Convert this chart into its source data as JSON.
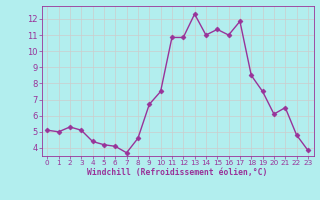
{
  "x": [
    0,
    1,
    2,
    3,
    4,
    5,
    6,
    7,
    8,
    9,
    10,
    11,
    12,
    13,
    14,
    15,
    16,
    17,
    18,
    19,
    20,
    21,
    22,
    23
  ],
  "y": [
    5.1,
    5.0,
    5.3,
    5.1,
    4.4,
    4.2,
    4.1,
    3.7,
    4.6,
    6.7,
    7.5,
    10.85,
    10.85,
    12.3,
    11.0,
    11.35,
    11.0,
    11.85,
    8.5,
    7.5,
    6.1,
    6.5,
    4.8,
    3.85
  ],
  "line_color": "#993399",
  "marker": "D",
  "marker_size": 2.5,
  "bg_color": "#b2eeee",
  "grid_color": "#cccccc",
  "xlabel": "Windchill (Refroidissement éolien,°C)",
  "xlabel_color": "#993399",
  "tick_color": "#993399",
  "ylim": [
    3.5,
    12.8
  ],
  "xlim": [
    -0.5,
    23.5
  ],
  "yticks": [
    4,
    5,
    6,
    7,
    8,
    9,
    10,
    11,
    12
  ],
  "xticks": [
    0,
    1,
    2,
    3,
    4,
    5,
    6,
    7,
    8,
    9,
    10,
    11,
    12,
    13,
    14,
    15,
    16,
    17,
    18,
    19,
    20,
    21,
    22,
    23
  ],
  "linewidth": 1.0
}
